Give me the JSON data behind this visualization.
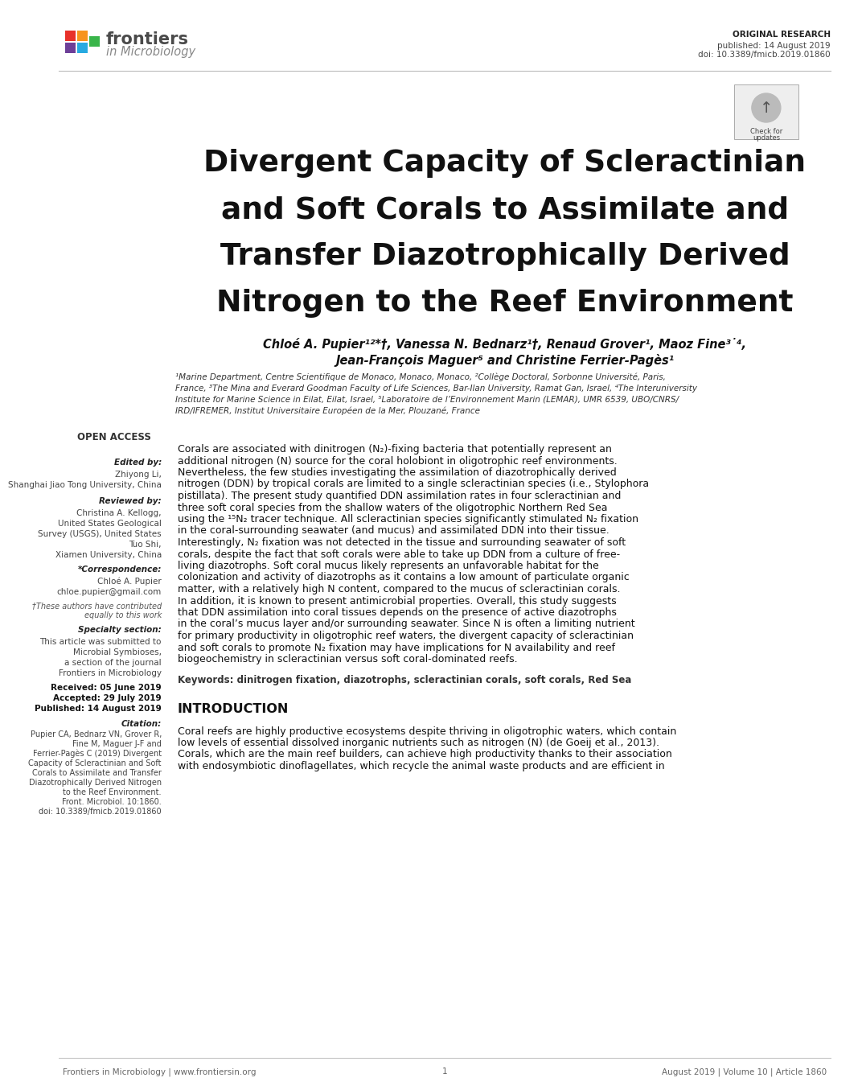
{
  "bg_color": "#ffffff",
  "header": {
    "orig_research_label": "ORIGINAL RESEARCH",
    "published_text": "published: 14 August 2019",
    "doi_text": "doi: 10.3389/fmicb.2019.01860"
  },
  "title_line1": "Divergent Capacity of Scleractinian",
  "title_line2": "and Soft Corals to Assimilate and",
  "title_line3": "Transfer Diazotrophically Derived",
  "title_line4": "Nitrogen to the Reef Environment",
  "authors_line1": "Chloé A. Pupier¹²*†, Vanessa N. Bednarz¹†, Renaud Grover¹, Maoz Fine³˙⁴,",
  "authors_line2": "Jean-François Maguer⁵ and Christine Ferrier-Pagès¹",
  "affiliations": "¹Marine Department, Centre Scientifique de Monaco, Monaco, Monaco, ²Collège Doctoral, Sorbonne Université, Paris,\nFrance, ³The Mina and Everard Goodman Faculty of Life Sciences, Bar-Ilan University, Ramat Gan, Israel, ⁴The Interuniversity\nInstitute for Marine Science in Eilat, Eilat, Israel, ⁵Laboratoire de l’Environnement Marin (LEMAR), UMR 6539, UBO/CNRS/\nIRD/IFREMER, Institut Universitaire Européen de la Mer, Plouzané, France",
  "left_col": {
    "open_access": "OPEN ACCESS",
    "edited_by_label": "Edited by:",
    "edited_by_line1": "Zhiyong Li,",
    "edited_by_line2": "Shanghai Jiao Tong University, China",
    "reviewed_by_label": "Reviewed by:",
    "reviewed_by_line1": "Christina A. Kellogg,",
    "reviewed_by_line2": "United States Geological",
    "reviewed_by_line3": "Survey (USGS), United States",
    "reviewed_by_line4": "Tuo Shi,",
    "reviewed_by_line5": "Xiamen University, China",
    "correspondence_label": "*Correspondence:",
    "correspondence_line1": "Chloé A. Pupier",
    "correspondence_line2": "chloe.pupier@gmail.com",
    "contrib_note_line1": "†These authors have contributed",
    "contrib_note_line2": "equally to this work",
    "specialty_label": "Specialty section:",
    "specialty_line1": "This article was submitted to",
    "specialty_line2": "Microbial Symbioses,",
    "specialty_line3": "a section of the journal",
    "specialty_line4": "Frontiers in Microbiology",
    "received": "Received: 05 June 2019",
    "accepted": "Accepted: 29 July 2019",
    "published": "Published: 14 August 2019",
    "citation_label": "Citation:",
    "citation_line1": "Pupier CA, Bednarz VN, Grover R,",
    "citation_line2": "Fine M, Maguer J-F and",
    "citation_line3": "Ferrier-Pagès C (2019) Divergent",
    "citation_line4": "Capacity of Scleractinian and Soft",
    "citation_line5": "Corals to Assimilate and Transfer",
    "citation_line6": "Diazotrophically Derived Nitrogen",
    "citation_line7": "to the Reef Environment.",
    "citation_line8": "Front. Microbiol. 10:1860.",
    "citation_line9": "doi: 10.3389/fmicb.2019.01860"
  },
  "abstract_line1": "Corals are associated with dinitrogen (N₂)-fixing bacteria that potentially represent an",
  "abstract_line2": "additional nitrogen (N) source for the coral holobiont in oligotrophic reef environments.",
  "abstract_line3": "Nevertheless, the few studies investigating the assimilation of diazotrophically derived",
  "abstract_line4": "nitrogen (DDN) by tropical corals are limited to a single scleractinian species (i.e., Stylophora",
  "abstract_line5": "pistillata). The present study quantified DDN assimilation rates in four scleractinian and",
  "abstract_line6": "three soft coral species from the shallow waters of the oligotrophic Northern Red Sea",
  "abstract_line7": "using the ¹⁵N₂ tracer technique. All scleractinian species significantly stimulated N₂ fixation",
  "abstract_line8": "in the coral-surrounding seawater (and mucus) and assimilated DDN into their tissue.",
  "abstract_line9": "Interestingly, N₂ fixation was not detected in the tissue and surrounding seawater of soft",
  "abstract_line10": "corals, despite the fact that soft corals were able to take up DDN from a culture of free-",
  "abstract_line11": "living diazotrophs. Soft coral mucus likely represents an unfavorable habitat for the",
  "abstract_line12": "colonization and activity of diazotrophs as it contains a low amount of particulate organic",
  "abstract_line13": "matter, with a relatively high N content, compared to the mucus of scleractinian corals.",
  "abstract_line14": "In addition, it is known to present antimicrobial properties. Overall, this study suggests",
  "abstract_line15": "that DDN assimilation into coral tissues depends on the presence of active diazotrophs",
  "abstract_line16": "in the coral’s mucus layer and/or surrounding seawater. Since N is often a limiting nutrient",
  "abstract_line17": "for primary productivity in oligotrophic reef waters, the divergent capacity of scleractinian",
  "abstract_line18": "and soft corals to promote N₂ fixation may have implications for N availability and reef",
  "abstract_line19": "biogeochemistry in scleractinian versus soft coral-dominated reefs.",
  "keywords": "Keywords: dinitrogen fixation, diazotrophs, scleractinian corals, soft corals, Red Sea",
  "intro_title": "INTRODUCTION",
  "intro_line1": "Coral reefs are highly productive ecosystems despite thriving in oligotrophic waters, which contain",
  "intro_line2": "low levels of essential dissolved inorganic nutrients such as nitrogen (N) (de Goeij et al., 2013).",
  "intro_line3": "Corals, which are the main reef builders, can achieve high productivity thanks to their association",
  "intro_line4": "with endosymbiotic dinoflagellates, which recycle the animal waste products and are efficient in",
  "footer_left": "Frontiers in Microbiology | www.frontiersin.org",
  "footer_center": "1",
  "footer_right": "August 2019 | Volume 10 | Article 1860",
  "logo_colors": [
    "#e8312a",
    "#f7941d",
    "#6d3f98",
    "#27aae1",
    "#39b54a"
  ],
  "logo_text_color": "#4a4a4a",
  "logo_sub_color": "#888888",
  "header_text_color": "#444444",
  "line_color": "#bbbbbb",
  "left_label_color": "#222222",
  "left_text_color": "#444444",
  "main_text_color": "#111111",
  "footer_text_color": "#666666"
}
